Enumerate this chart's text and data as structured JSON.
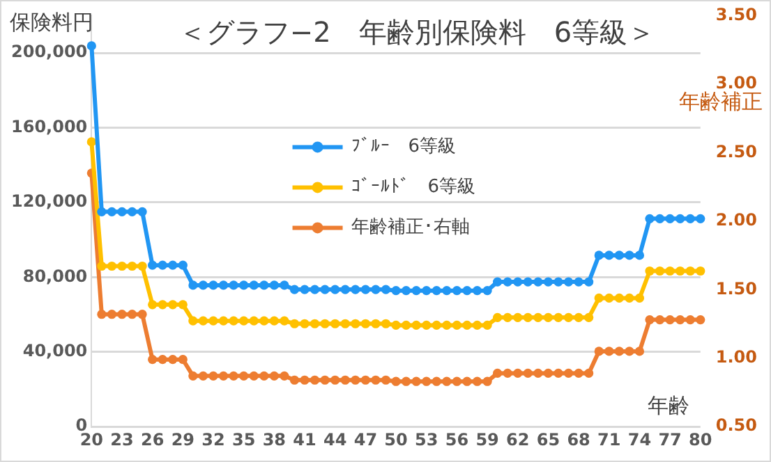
{
  "chart_data": {
    "type": "line",
    "title": "＜グラフ−2　年齢別保険料　6等級＞",
    "ylabel": "保険料円",
    "y2label": "年齢補正",
    "xlabel": "年齢",
    "categories": [
      "20",
      null,
      null,
      "23",
      null,
      null,
      "26",
      null,
      null,
      "29",
      null,
      null,
      "32",
      null,
      null,
      "35",
      null,
      null,
      "38",
      null,
      null,
      "41",
      null,
      null,
      "44",
      null,
      null,
      "47",
      null,
      null,
      "50",
      null,
      null,
      "53",
      null,
      null,
      "56",
      null,
      null,
      "59",
      null,
      null,
      "62",
      null,
      null,
      "65",
      null,
      null,
      "68",
      null,
      null,
      "71",
      null,
      null,
      "74",
      null,
      null,
      "77",
      null,
      null,
      "80"
    ],
    "series": [
      {
        "name": "ﾌﾞﾙｰ　6等級",
        "color": "#2196f3",
        "values": [
          203800,
          115000,
          115000,
          115000,
          115000,
          115000,
          86400,
          86400,
          86400,
          86400,
          75700,
          75700,
          75700,
          75700,
          75700,
          75700,
          75700,
          75700,
          75700,
          75700,
          73400,
          73400,
          73400,
          73400,
          73400,
          73400,
          73400,
          73400,
          73400,
          73400,
          72800,
          72800,
          72800,
          72800,
          72800,
          72800,
          72800,
          72800,
          72800,
          72800,
          77500,
          77500,
          77500,
          77500,
          77500,
          77500,
          77500,
          77500,
          77500,
          77500,
          91700,
          91700,
          91700,
          91700,
          91700,
          111300,
          111300,
          111300,
          111300,
          111300,
          111300
        ]
      },
      {
        "name": "ｺﾞｰﾙﾄﾞ　6等級",
        "color": "#ffc000",
        "values": [
          152400,
          85900,
          85900,
          85900,
          85900,
          85900,
          65300,
          65300,
          65300,
          65300,
          56600,
          56600,
          56600,
          56600,
          56600,
          56600,
          56600,
          56600,
          56600,
          56600,
          55100,
          55100,
          55100,
          55100,
          55100,
          55100,
          55100,
          55100,
          55100,
          55100,
          54300,
          54300,
          54300,
          54300,
          54300,
          54300,
          54300,
          54300,
          54300,
          54300,
          58400,
          58400,
          58400,
          58400,
          58400,
          58400,
          58400,
          58400,
          58400,
          58400,
          68800,
          68800,
          68800,
          68800,
          68800,
          83300,
          83300,
          83300,
          83300,
          83300,
          83300
        ]
      },
      {
        "name": "年齢補正･右軸",
        "color": "#ed7d31",
        "axis": "y2",
        "values": [
          2.35,
          1.32,
          1.32,
          1.32,
          1.32,
          1.32,
          0.99,
          0.99,
          0.99,
          0.99,
          0.87,
          0.87,
          0.87,
          0.87,
          0.87,
          0.87,
          0.87,
          0.87,
          0.87,
          0.87,
          0.84,
          0.84,
          0.84,
          0.84,
          0.84,
          0.84,
          0.84,
          0.84,
          0.84,
          0.84,
          0.83,
          0.83,
          0.83,
          0.83,
          0.83,
          0.83,
          0.83,
          0.83,
          0.83,
          0.83,
          0.89,
          0.89,
          0.89,
          0.89,
          0.89,
          0.89,
          0.89,
          0.89,
          0.89,
          0.89,
          1.05,
          1.05,
          1.05,
          1.05,
          1.05,
          1.28,
          1.28,
          1.28,
          1.28,
          1.28,
          1.28
        ]
      }
    ],
    "ylim": [
      0,
      220000
    ],
    "yticks": [
      {
        "value": 0,
        "label": "0"
      },
      {
        "value": 40000,
        "label": "40,000"
      },
      {
        "value": 80000,
        "label": "80,000"
      },
      {
        "value": 120000,
        "label": "120,000"
      },
      {
        "value": 160000,
        "label": "160,000"
      },
      {
        "value": 200000,
        "label": "200,000"
      }
    ],
    "y2lim": [
      0.5,
      3.5
    ],
    "y2ticks": [
      {
        "value": 0.5,
        "label": "0.50"
      },
      {
        "value": 1,
        "label": "1.00"
      },
      {
        "value": 1.5,
        "label": "1.50"
      },
      {
        "value": 2,
        "label": "2.00"
      },
      {
        "value": 2.5,
        "label": "2.50"
      },
      {
        "value": 3,
        "label": "3.00"
      },
      {
        "value": 3.5,
        "label": "3.50"
      }
    ],
    "grid": "y",
    "legend": "center",
    "marker": "circle",
    "line_style": "solid"
  }
}
